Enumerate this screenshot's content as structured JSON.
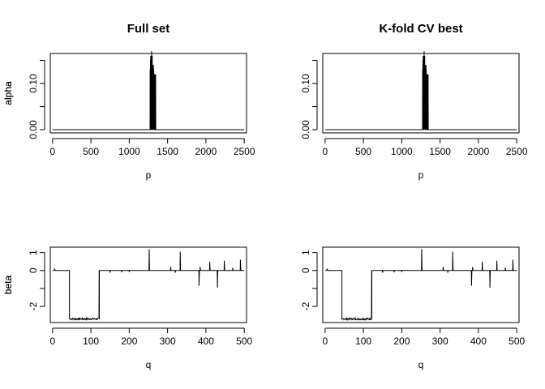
{
  "chart_data": [
    {
      "type": "line",
      "title": "Full set",
      "xlabel": "p",
      "ylabel": "alpha",
      "xlim": [
        -30,
        2530
      ],
      "ylim": [
        -0.007,
        0.165
      ],
      "xticks": [
        0,
        500,
        1000,
        1500,
        2000,
        2500
      ],
      "xtick_labels": [
        "0",
        "500",
        "1000",
        "1500",
        "2000",
        "2500"
      ],
      "yticks": [
        0.0,
        0.1
      ],
      "ytick_labels": [
        "0.00",
        "0.10"
      ],
      "yticks_unlabeled": [
        0.05,
        0.15
      ],
      "baseline": 0,
      "x_range": [
        1,
        2500
      ],
      "points": [
        [
          1270,
          0
        ],
        [
          1272,
          0.13
        ],
        [
          1274,
          0.02
        ],
        [
          1276,
          0.15
        ],
        [
          1278,
          0.01
        ],
        [
          1280,
          0.16
        ],
        [
          1282,
          0.03
        ],
        [
          1284,
          0.14
        ],
        [
          1286,
          0.0
        ],
        [
          1288,
          0.16
        ],
        [
          1290,
          0.02
        ],
        [
          1292,
          0.17
        ],
        [
          1294,
          0.04
        ],
        [
          1296,
          0.15
        ],
        [
          1298,
          0.01
        ],
        [
          1300,
          0.16
        ],
        [
          1302,
          0.03
        ],
        [
          1304,
          0.13
        ],
        [
          1306,
          0.0
        ],
        [
          1308,
          0.14
        ],
        [
          1310,
          0.02
        ],
        [
          1312,
          0.12
        ],
        [
          1314,
          0.04
        ],
        [
          1316,
          0.14
        ],
        [
          1318,
          0.01
        ],
        [
          1320,
          0.13
        ],
        [
          1322,
          0.03
        ],
        [
          1324,
          0.11
        ],
        [
          1326,
          0.0
        ],
        [
          1328,
          0.12
        ],
        [
          1330,
          0.02
        ],
        [
          1332,
          0.1
        ],
        [
          1334,
          0.01
        ],
        [
          1336,
          0.12
        ],
        [
          1338,
          0.0
        ],
        [
          1340,
          0.11
        ],
        [
          1342,
          0.02
        ],
        [
          1344,
          0.12
        ],
        [
          1346,
          0.0
        ],
        [
          1348,
          0.0
        ]
      ],
      "grid": false
    },
    {
      "type": "line",
      "title": "K-fold CV best",
      "xlabel": "p",
      "ylabel": "alpha",
      "xlim": [
        -30,
        2530
      ],
      "ylim": [
        -0.007,
        0.165
      ],
      "xticks": [
        0,
        500,
        1000,
        1500,
        2000,
        2500
      ],
      "xtick_labels": [
        "0",
        "500",
        "1000",
        "1500",
        "2000",
        "2500"
      ],
      "yticks": [
        0.0,
        0.1
      ],
      "ytick_labels": [
        "0.00",
        "0.10"
      ],
      "yticks_unlabeled": [
        0.05,
        0.15
      ],
      "baseline": 0,
      "x_range": [
        1,
        2500
      ],
      "points": [
        [
          1270,
          0
        ],
        [
          1272,
          0.13
        ],
        [
          1274,
          0.02
        ],
        [
          1276,
          0.15
        ],
        [
          1278,
          0.01
        ],
        [
          1280,
          0.16
        ],
        [
          1282,
          0.03
        ],
        [
          1284,
          0.14
        ],
        [
          1286,
          0.0
        ],
        [
          1288,
          0.16
        ],
        [
          1290,
          0.02
        ],
        [
          1292,
          0.17
        ],
        [
          1294,
          0.04
        ],
        [
          1296,
          0.15
        ],
        [
          1298,
          0.01
        ],
        [
          1300,
          0.16
        ],
        [
          1302,
          0.03
        ],
        [
          1304,
          0.13
        ],
        [
          1306,
          0.0
        ],
        [
          1308,
          0.14
        ],
        [
          1310,
          0.02
        ],
        [
          1312,
          0.12
        ],
        [
          1314,
          0.04
        ],
        [
          1316,
          0.14
        ],
        [
          1318,
          0.01
        ],
        [
          1320,
          0.13
        ],
        [
          1322,
          0.03
        ],
        [
          1324,
          0.11
        ],
        [
          1326,
          0.0
        ],
        [
          1328,
          0.12
        ],
        [
          1330,
          0.02
        ],
        [
          1332,
          0.1
        ],
        [
          1334,
          0.01
        ],
        [
          1336,
          0.12
        ],
        [
          1338,
          0.0
        ],
        [
          1340,
          0.11
        ],
        [
          1342,
          0.02
        ],
        [
          1344,
          0.12
        ],
        [
          1346,
          0.0
        ],
        [
          1348,
          0.0
        ]
      ],
      "grid": false
    },
    {
      "type": "line",
      "title": "",
      "xlabel": "q",
      "ylabel": "beta",
      "xlim": [
        -6,
        506
      ],
      "ylim": [
        -2.9,
        1.3
      ],
      "xticks": [
        0,
        100,
        200,
        300,
        400,
        500
      ],
      "xtick_labels": [
        "0",
        "100",
        "200",
        "300",
        "400",
        "500"
      ],
      "yticks": [
        -2,
        0,
        1
      ],
      "ytick_labels": [
        "-2",
        "0",
        "1"
      ],
      "yticks_unlabeled": [
        -1
      ],
      "baseline": 0,
      "x_range": [
        1,
        500
      ],
      "block": {
        "x": [
          44,
          122
        ],
        "value": -2.7,
        "noise": 0.05
      },
      "points": [
        [
          5,
          0.08
        ],
        [
          8,
          0.0
        ],
        [
          44,
          0.0
        ],
        [
          44,
          -2.7
        ],
        [
          122,
          -2.7
        ],
        [
          122,
          0.0
        ],
        [
          150,
          -0.12
        ],
        [
          151,
          0.0
        ],
        [
          180,
          -0.1
        ],
        [
          181,
          0.0
        ],
        [
          200,
          -0.08
        ],
        [
          201,
          0.0
        ],
        [
          252,
          1.2
        ],
        [
          253,
          0.0
        ],
        [
          308,
          0.2
        ],
        [
          309,
          0.0
        ],
        [
          320,
          -0.12
        ],
        [
          321,
          0.0
        ],
        [
          333,
          1.05
        ],
        [
          334,
          0.0
        ],
        [
          382,
          -0.85
        ],
        [
          383,
          0.0
        ],
        [
          385,
          0.2
        ],
        [
          386,
          0.0
        ],
        [
          410,
          0.5
        ],
        [
          411,
          0.0
        ],
        [
          430,
          -0.95
        ],
        [
          431,
          0.0
        ],
        [
          448,
          0.55
        ],
        [
          449,
          0.0
        ],
        [
          470,
          0.15
        ],
        [
          471,
          0.0
        ],
        [
          490,
          0.6
        ],
        [
          491,
          0.0
        ]
      ],
      "grid": false
    },
    {
      "type": "line",
      "title": "",
      "xlabel": "q",
      "ylabel": "beta",
      "xlim": [
        -6,
        506
      ],
      "ylim": [
        -2.9,
        1.3
      ],
      "xticks": [
        0,
        100,
        200,
        300,
        400,
        500
      ],
      "xtick_labels": [
        "0",
        "100",
        "200",
        "300",
        "400",
        "500"
      ],
      "yticks": [
        -2,
        0,
        1
      ],
      "ytick_labels": [
        "-2",
        "0",
        "1"
      ],
      "yticks_unlabeled": [
        -1
      ],
      "baseline": 0,
      "x_range": [
        1,
        500
      ],
      "block": {
        "x": [
          44,
          122
        ],
        "value": -2.7,
        "noise": 0.05
      },
      "points": [
        [
          5,
          0.08
        ],
        [
          8,
          0.0
        ],
        [
          44,
          0.0
        ],
        [
          44,
          -2.7
        ],
        [
          122,
          -2.7
        ],
        [
          122,
          0.0
        ],
        [
          150,
          -0.12
        ],
        [
          151,
          0.0
        ],
        [
          180,
          -0.1
        ],
        [
          181,
          0.0
        ],
        [
          200,
          -0.08
        ],
        [
          201,
          0.0
        ],
        [
          252,
          1.2
        ],
        [
          253,
          0.0
        ],
        [
          308,
          0.2
        ],
        [
          309,
          0.0
        ],
        [
          320,
          -0.12
        ],
        [
          321,
          0.0
        ],
        [
          333,
          1.05
        ],
        [
          334,
          0.0
        ],
        [
          382,
          -0.85
        ],
        [
          383,
          0.0
        ],
        [
          385,
          0.2
        ],
        [
          386,
          0.0
        ],
        [
          410,
          0.5
        ],
        [
          411,
          0.0
        ],
        [
          430,
          -0.95
        ],
        [
          431,
          0.0
        ],
        [
          448,
          0.55
        ],
        [
          449,
          0.0
        ],
        [
          470,
          0.15
        ],
        [
          471,
          0.0
        ],
        [
          490,
          0.6
        ],
        [
          491,
          0.0
        ]
      ],
      "grid": false
    }
  ]
}
